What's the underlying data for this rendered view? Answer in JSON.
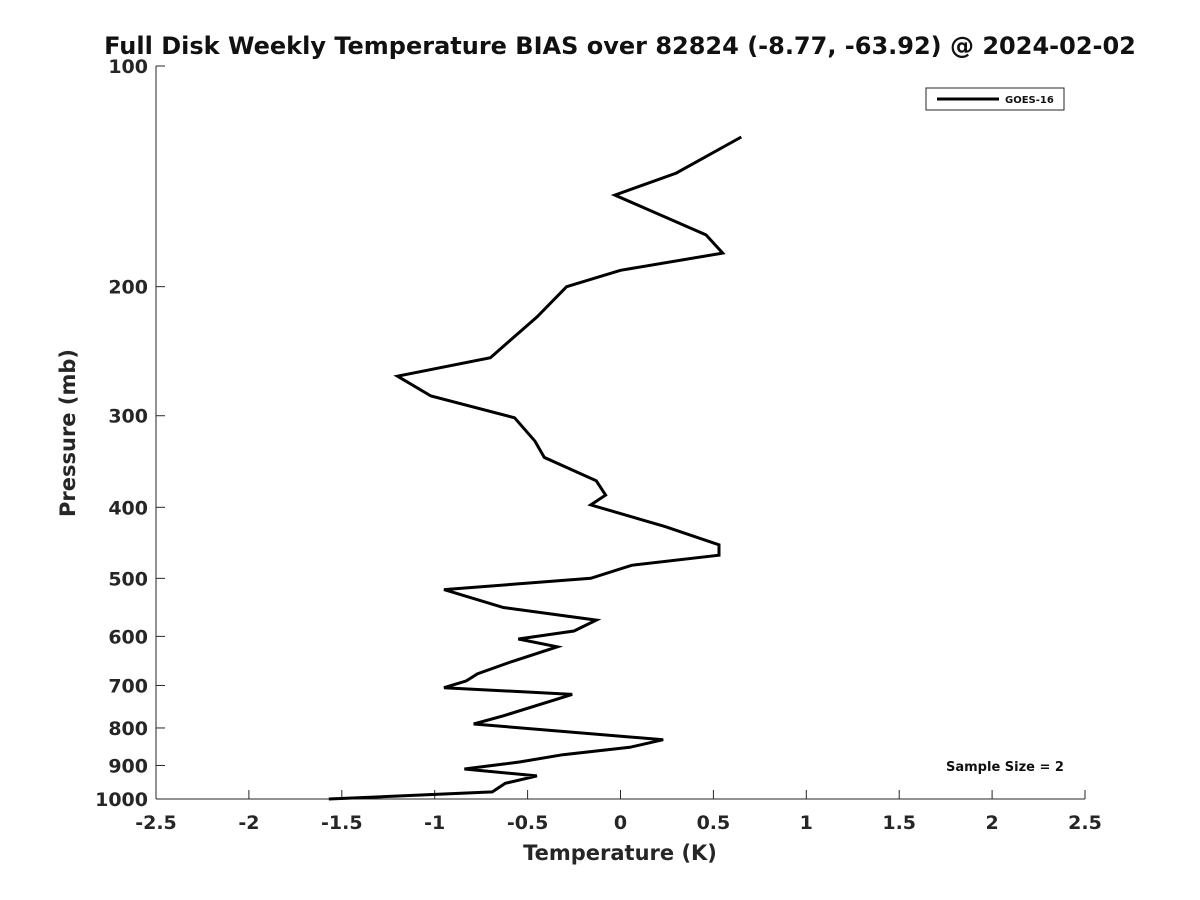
{
  "chart_data": {
    "type": "line",
    "title": "Full Disk Weekly Temperature BIAS over 82824 (-8.77, -63.92) @ 2024-02-02",
    "xlabel": "Temperature (K)",
    "ylabel": "Pressure (mb)",
    "xlim": [
      -2.5,
      2.5
    ],
    "ylim": [
      1000,
      100
    ],
    "yscale": "log",
    "y_reversed": true,
    "grid": false,
    "legend_position": "top-right",
    "xticks": [
      -2.5,
      -2,
      -1.5,
      -1,
      -0.5,
      0,
      0.5,
      1,
      1.5,
      2,
      2.5
    ],
    "xtick_labels": [
      "-2.5",
      "-2",
      "-1.5",
      "-1",
      "-0.5",
      "0",
      "0.5",
      "1",
      "1.5",
      "2",
      "2.5"
    ],
    "yticks": [
      100,
      200,
      300,
      400,
      500,
      600,
      700,
      800,
      900,
      1000
    ],
    "ytick_labels": [
      "100",
      "200",
      "300",
      "400",
      "500",
      "600",
      "700",
      "800",
      "900",
      "1000"
    ],
    "series": [
      {
        "name": "GOES-16",
        "color": "#000000",
        "points": [
          [
            0.65,
            125
          ],
          [
            0.3,
            140
          ],
          [
            -0.03,
            150
          ],
          [
            0.46,
            170
          ],
          [
            0.55,
            180
          ],
          [
            0.0,
            190
          ],
          [
            -0.29,
            200
          ],
          [
            -0.45,
            220
          ],
          [
            -0.7,
            250
          ],
          [
            -1.2,
            265
          ],
          [
            -1.02,
            282
          ],
          [
            -0.57,
            302
          ],
          [
            -0.46,
            325
          ],
          [
            -0.41,
            342
          ],
          [
            -0.13,
            368
          ],
          [
            -0.08,
            385
          ],
          [
            -0.16,
            397
          ],
          [
            0.24,
            425
          ],
          [
            0.53,
            450
          ],
          [
            0.53,
            465
          ],
          [
            0.06,
            480
          ],
          [
            -0.16,
            500
          ],
          [
            -0.95,
            518
          ],
          [
            -0.63,
            548
          ],
          [
            -0.13,
            570
          ],
          [
            -0.25,
            590
          ],
          [
            -0.55,
            605
          ],
          [
            -0.34,
            620
          ],
          [
            -0.59,
            650
          ],
          [
            -0.77,
            675
          ],
          [
            -0.83,
            690
          ],
          [
            -0.95,
            705
          ],
          [
            -0.26,
            720
          ],
          [
            -0.63,
            770
          ],
          [
            -0.79,
            790
          ],
          [
            0.23,
            830
          ],
          [
            0.05,
            850
          ],
          [
            -0.31,
            870
          ],
          [
            -0.54,
            890
          ],
          [
            -0.84,
            910
          ],
          [
            -0.45,
            930
          ],
          [
            -0.62,
            952
          ],
          [
            -0.69,
            978
          ],
          [
            -1.57,
            1000
          ]
        ]
      }
    ],
    "annotation": "Sample Size = 2"
  }
}
